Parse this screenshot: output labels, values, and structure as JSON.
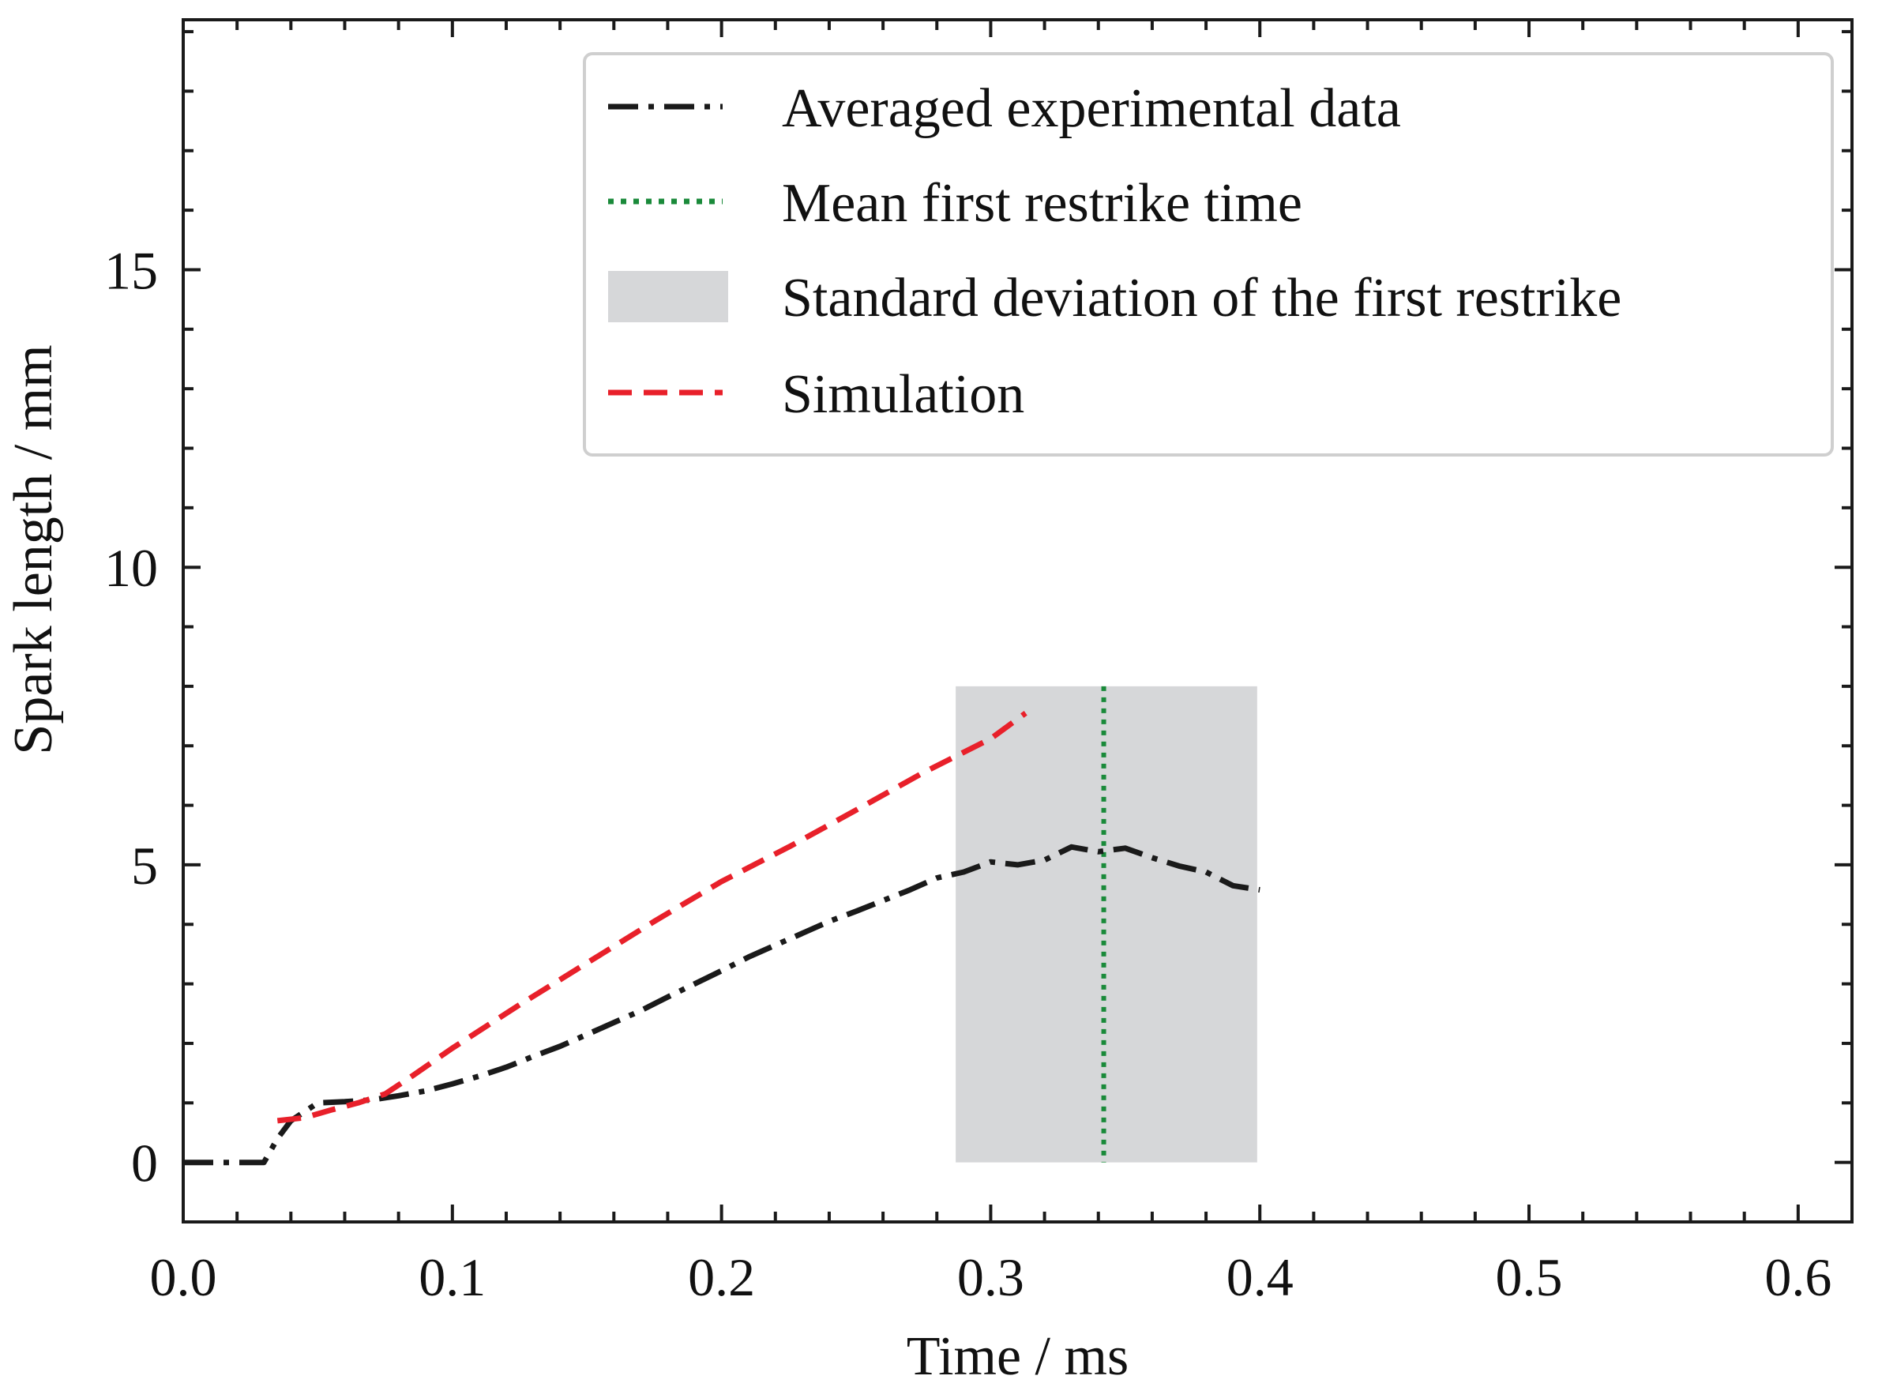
{
  "chart_data": {
    "type": "line",
    "title": "",
    "xlabel": "Time / ms",
    "ylabel": "Spark length / mm",
    "xlim": [
      0.0,
      0.62
    ],
    "ylim": [
      -1.0,
      19.2
    ],
    "x_ticks": [
      0.0,
      0.1,
      0.2,
      0.3,
      0.4,
      0.5,
      0.6
    ],
    "x_tick_labels": [
      "0.0",
      "0.1",
      "0.2",
      "0.3",
      "0.4",
      "0.5",
      "0.6"
    ],
    "x_minor_step": 0.02,
    "y_ticks": [
      0,
      5,
      10,
      15
    ],
    "y_tick_labels": [
      "0",
      "5",
      "10",
      "15"
    ],
    "y_minor_step": 1,
    "grid": false,
    "legend_position": "top-right",
    "series": [
      {
        "name": "Averaged experimental data",
        "style": "dash-dot",
        "color": "#1a1a1a",
        "x": [
          0.0,
          0.01,
          0.02,
          0.03,
          0.035,
          0.04,
          0.045,
          0.05,
          0.06,
          0.07,
          0.08,
          0.09,
          0.1,
          0.11,
          0.12,
          0.13,
          0.14,
          0.15,
          0.16,
          0.17,
          0.18,
          0.19,
          0.2,
          0.21,
          0.22,
          0.23,
          0.24,
          0.25,
          0.26,
          0.27,
          0.28,
          0.29,
          0.3,
          0.31,
          0.32,
          0.33,
          0.34,
          0.35,
          0.36,
          0.37,
          0.38,
          0.39,
          0.4
        ],
        "y": [
          0.0,
          0.0,
          0.0,
          0.0,
          0.4,
          0.7,
          0.85,
          1.0,
          1.02,
          1.05,
          1.12,
          1.2,
          1.32,
          1.45,
          1.6,
          1.78,
          1.95,
          2.15,
          2.35,
          2.55,
          2.78,
          3.0,
          3.22,
          3.45,
          3.65,
          3.85,
          4.05,
          4.22,
          4.4,
          4.58,
          4.78,
          4.88,
          5.05,
          5.0,
          5.08,
          5.3,
          5.22,
          5.28,
          5.12,
          4.98,
          4.88,
          4.65,
          4.58
        ]
      },
      {
        "name": "Simulation",
        "style": "dashed",
        "color": "#e8202a",
        "x": [
          0.035,
          0.045,
          0.055,
          0.065,
          0.075,
          0.085,
          0.1,
          0.125,
          0.15,
          0.175,
          0.2,
          0.225,
          0.25,
          0.275,
          0.3,
          0.313
        ],
        "y": [
          0.7,
          0.75,
          0.88,
          1.0,
          1.15,
          1.45,
          1.92,
          2.65,
          3.35,
          4.05,
          4.72,
          5.3,
          5.92,
          6.55,
          7.12,
          7.55
        ]
      }
    ],
    "vertical_line": {
      "name": "Mean first restrike time",
      "x": 0.342,
      "style": "dotted",
      "color": "#1a8a3a"
    },
    "shaded_band": {
      "name": "Standard deviation of the first restrike",
      "x_range": [
        0.287,
        0.399
      ],
      "y_range": [
        0.0,
        8.0
      ],
      "color": "#d6d7d9"
    },
    "legend_entries": [
      "Averaged experimental data",
      "Mean first restrike time",
      "Standard deviation of the first restrike",
      "Simulation"
    ]
  }
}
